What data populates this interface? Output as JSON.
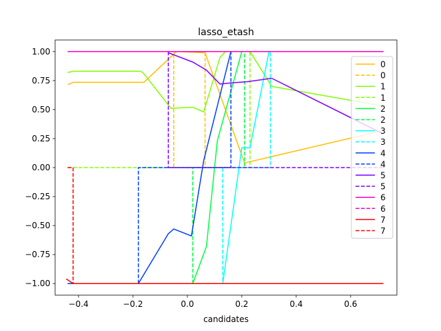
{
  "chart_data": {
    "type": "line",
    "title": "lasso_etash",
    "xlabel": "candidates",
    "ylabel": "",
    "xlim": [
      -0.486,
      0.77
    ],
    "ylim": [
      -1.1,
      1.1
    ],
    "xticks": [
      -0.4,
      -0.2,
      0.0,
      0.2,
      0.4,
      0.6
    ],
    "xtick_labels": [
      "−0.4",
      "−0.2",
      "0.0",
      "0.2",
      "0.4",
      "0.6"
    ],
    "yticks": [
      -1.0,
      -0.75,
      -0.5,
      -0.25,
      0.0,
      0.25,
      0.5,
      0.75,
      1.0
    ],
    "ytick_labels": [
      "−1.00",
      "−0.75",
      "−0.50",
      "−0.25",
      "0.00",
      "0.25",
      "0.50",
      "0.75",
      "1.00"
    ],
    "grid": false,
    "legend_position": "right",
    "series": [
      {
        "name": "0",
        "color": "#ffbf00",
        "style": "solid",
        "x": [
          -0.44,
          -0.42,
          -0.16,
          -0.04,
          0.065,
          0.21,
          0.72
        ],
        "y": [
          0.715,
          0.735,
          0.735,
          1.0,
          0.99,
          0.04,
          0.32
        ]
      },
      {
        "name": "0",
        "color": "#ffbf00",
        "style": "dashed",
        "x": [
          -0.44,
          -0.05,
          -0.05,
          0.065,
          0.065,
          0.72
        ],
        "y": [
          1.0,
          1.0,
          0.0,
          0.0,
          1.0,
          1.0
        ]
      },
      {
        "name": "1",
        "color": "#80ff00",
        "style": "solid",
        "x": [
          -0.44,
          -0.42,
          -0.17,
          -0.16,
          -0.06,
          0.02,
          0.06,
          0.12,
          0.14,
          0.23,
          0.31,
          0.72
        ],
        "y": [
          0.82,
          0.83,
          0.83,
          0.81,
          0.51,
          0.52,
          0.48,
          0.95,
          1.0,
          1.0,
          0.7,
          0.53
        ]
      },
      {
        "name": "1",
        "color": "#80ff00",
        "style": "dashed",
        "x": [
          -0.44,
          0.23,
          0.23,
          0.72
        ],
        "y": [
          0.0,
          0.0,
          1.0,
          1.0
        ]
      },
      {
        "name": "2",
        "color": "#00ff40",
        "style": "solid",
        "x": [
          -0.44,
          0.02,
          0.07,
          0.11,
          0.2,
          0.72
        ],
        "y": [
          -1.0,
          -1.0,
          -0.68,
          0.23,
          1.0,
          1.0
        ]
      },
      {
        "name": "2",
        "color": "#00ff40",
        "style": "dashed",
        "x": [
          -0.44,
          0.02,
          0.02,
          0.21,
          0.21,
          0.72
        ],
        "y": [
          -1.0,
          -1.0,
          0.0,
          0.0,
          1.0,
          1.0
        ]
      },
      {
        "name": "3",
        "color": "#00ffff",
        "style": "solid",
        "x": [
          -0.44,
          0.13,
          0.2,
          0.23,
          0.3,
          0.72
        ],
        "y": [
          -1.0,
          -1.0,
          0.17,
          0.17,
          1.0,
          1.0
        ]
      },
      {
        "name": "3",
        "color": "#00ffff",
        "style": "dashed",
        "x": [
          -0.44,
          0.13,
          0.13,
          0.305,
          0.305,
          0.72
        ],
        "y": [
          -1.0,
          -1.0,
          0.0,
          0.0,
          1.0,
          1.0
        ]
      },
      {
        "name": "4",
        "color": "#0040ff",
        "style": "solid",
        "x": [
          -0.44,
          -0.18,
          -0.07,
          -0.05,
          0.015,
          0.06,
          0.16,
          0.72
        ],
        "y": [
          -1.0,
          -1.0,
          -0.57,
          -0.53,
          -0.59,
          0.06,
          1.0,
          1.0
        ]
      },
      {
        "name": "4",
        "color": "#0040ff",
        "style": "dashed",
        "x": [
          -0.44,
          -0.18,
          -0.18,
          0.16,
          0.16,
          0.72
        ],
        "y": [
          -1.0,
          -1.0,
          0.0,
          0.0,
          1.0,
          1.0
        ]
      },
      {
        "name": "5",
        "color": "#8000ff",
        "style": "solid",
        "x": [
          -0.07,
          0.02,
          0.07,
          0.12,
          0.16,
          0.22,
          0.31,
          0.72
        ],
        "y": [
          0.99,
          0.91,
          0.84,
          0.72,
          0.73,
          0.74,
          0.77,
          0.29
        ]
      },
      {
        "name": "5",
        "color": "#8000ff",
        "style": "dashed",
        "x": [
          -0.07,
          -0.07,
          0.72
        ],
        "y": [
          1.0,
          0.0,
          0.0
        ]
      },
      {
        "name": "6",
        "color": "#ff00c0",
        "style": "solid",
        "x": [
          -0.44,
          0.72
        ],
        "y": [
          1.0,
          1.0
        ]
      },
      {
        "name": "6",
        "color": "#ff00c0",
        "style": "dashed",
        "x": [
          -0.44,
          0.72
        ],
        "y": [
          1.0,
          1.0
        ]
      },
      {
        "name": "7",
        "color": "#ff0000",
        "style": "solid",
        "x": [
          -0.445,
          -0.42,
          0.72
        ],
        "y": [
          -0.96,
          -1.0,
          -1.0
        ]
      },
      {
        "name": "7",
        "color": "#ff0000",
        "style": "dashed",
        "x": [
          -0.44,
          -0.42,
          -0.42,
          0.72
        ],
        "y": [
          0.0,
          0.0,
          -1.0,
          -1.0
        ]
      }
    ]
  }
}
